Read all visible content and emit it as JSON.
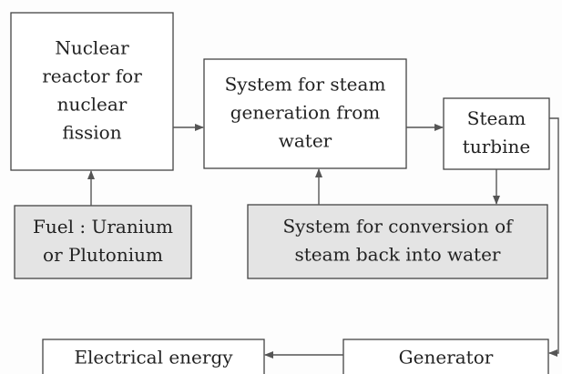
{
  "nodes": [
    {
      "lines": [
        "Nuclear",
        "reactor for",
        "nuclear",
        "fission"
      ]
    },
    {
      "lines": [
        "System for steam",
        "generation from",
        "water"
      ]
    },
    {
      "lines": [
        "Steam",
        "turbine"
      ]
    },
    {
      "lines": [
        "Fuel : Uranium",
        "or Plutonium"
      ]
    },
    {
      "lines": [
        "System for conversion of",
        "steam back into water"
      ]
    },
    {
      "lines": [
        "Electrical energy"
      ]
    },
    {
      "lines": [
        "Generator"
      ]
    }
  ]
}
